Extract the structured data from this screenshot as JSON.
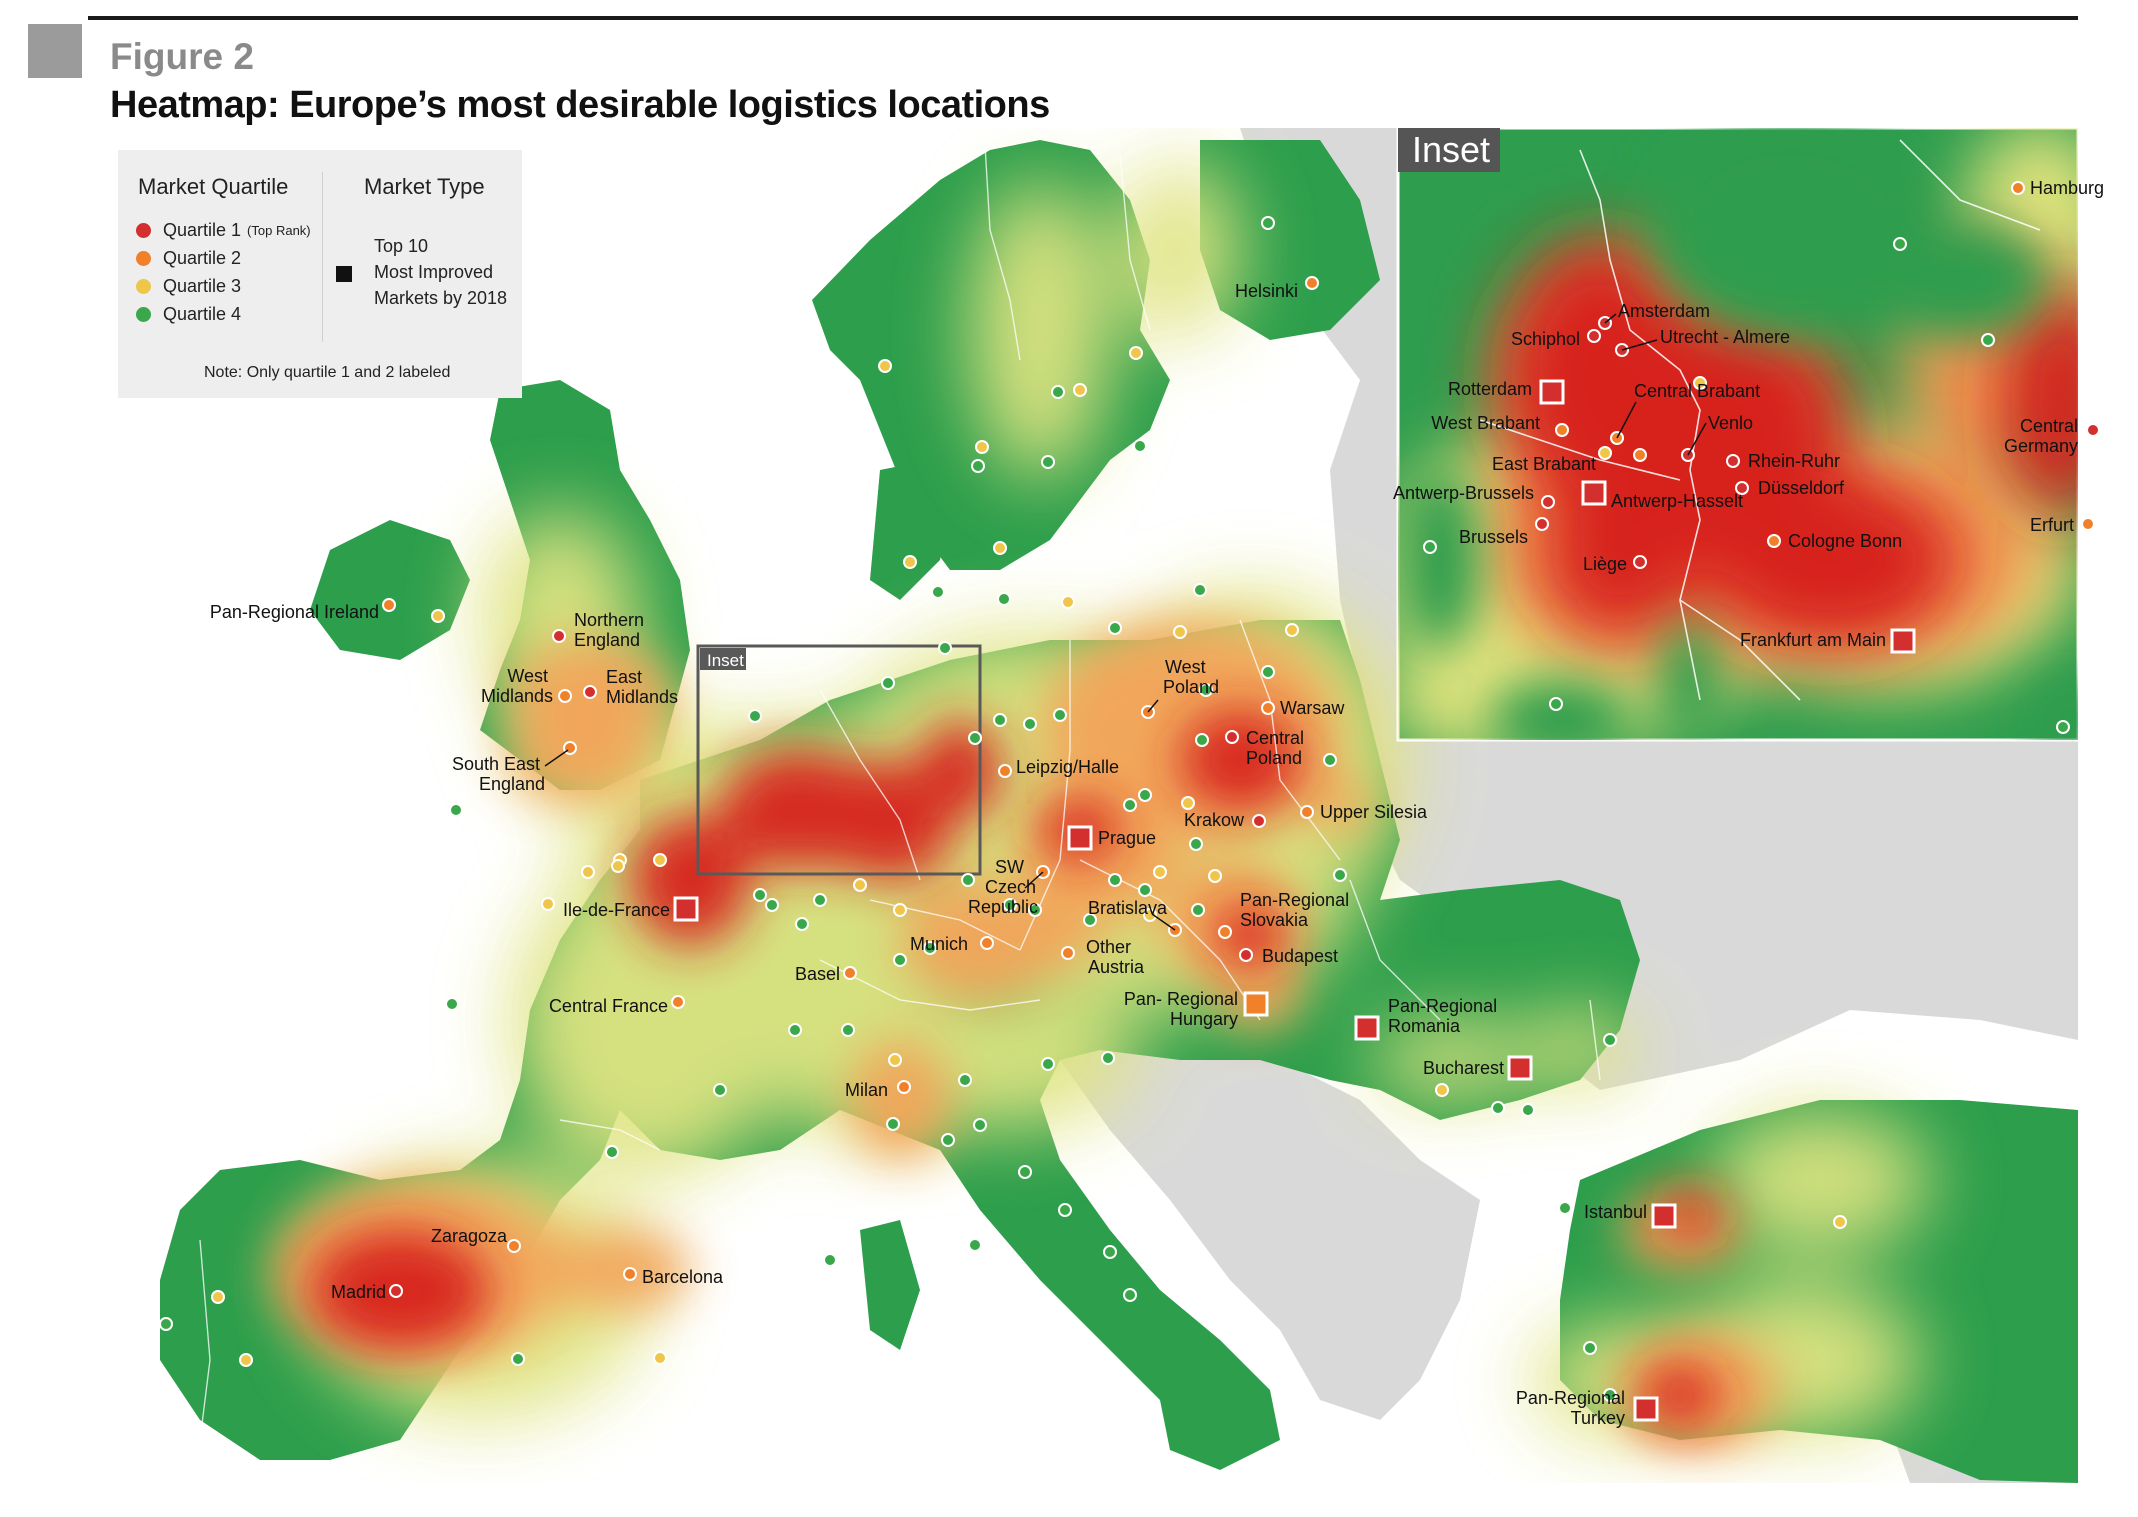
{
  "figure": {
    "label": "Figure 2",
    "title": "Heatmap: Europe’s most desirable logistics locations"
  },
  "legend": {
    "quartile_heading": "Market Quartile",
    "type_heading": "Market Type",
    "quartiles": [
      {
        "label": "Quartile 1",
        "sub": "(Top Rank)",
        "color": "#d32f2f"
      },
      {
        "label": "Quartile 2",
        "sub": "",
        "color": "#f0812a"
      },
      {
        "label": "Quartile 3",
        "sub": "",
        "color": "#efc64a"
      },
      {
        "label": "Quartile 4",
        "sub": "",
        "color": "#3aa74a"
      }
    ],
    "type_lines": [
      "Top 10",
      "Most Improved",
      "Markets by 2018"
    ],
    "note": "Note: Only quartile 1 and 2 labeled"
  },
  "inset": {
    "tag": "Inset",
    "mini_tag": "Inset"
  },
  "colors": {
    "heat_red": "#d7231f",
    "heat_orange": "#f0812a",
    "heat_yellow": "#e4e48c",
    "heat_green": "#1f9a48",
    "non_europe_gray": "#d9d9d9",
    "sea": "#ffffff"
  },
  "markets": [
    {
      "name": "Helsinki",
      "quartile": 2,
      "improved": false
    },
    {
      "name": "Pan-Regional Ireland",
      "quartile": 2,
      "improved": false
    },
    {
      "name": "Northern England",
      "quartile": 1,
      "improved": false
    },
    {
      "name": "West Midlands",
      "quartile": 2,
      "improved": false
    },
    {
      "name": "East Midlands",
      "quartile": 1,
      "improved": false
    },
    {
      "name": "South East England",
      "quartile": 2,
      "improved": false
    },
    {
      "name": "Leipzig/Halle",
      "quartile": 2,
      "improved": false
    },
    {
      "name": "West Poland",
      "quartile": 2,
      "improved": false
    },
    {
      "name": "Warsaw",
      "quartile": 2,
      "improved": false
    },
    {
      "name": "Central Poland",
      "quartile": 1,
      "improved": false
    },
    {
      "name": "Upper Silesia",
      "quartile": 2,
      "improved": false
    },
    {
      "name": "Krakow",
      "quartile": 1,
      "improved": false
    },
    {
      "name": "Prague",
      "quartile": 1,
      "improved": true
    },
    {
      "name": "SW Czech Republic",
      "quartile": 2,
      "improved": false
    },
    {
      "name": "Ile-de-France",
      "quartile": 1,
      "improved": true
    },
    {
      "name": "Bratislava",
      "quartile": 2,
      "improved": false
    },
    {
      "name": "Pan-Regional Slovakia",
      "quartile": 2,
      "improved": false
    },
    {
      "name": "Budapest",
      "quartile": 1,
      "improved": false
    },
    {
      "name": "Munich",
      "quartile": 2,
      "improved": false
    },
    {
      "name": "Other Austria",
      "quartile": 2,
      "improved": false
    },
    {
      "name": "Basel",
      "quartile": 2,
      "improved": false
    },
    {
      "name": "Pan- Regional Hungary",
      "quartile": 2,
      "improved": true
    },
    {
      "name": "Pan-Regional Romania",
      "quartile": 1,
      "improved": true
    },
    {
      "name": "Bucharest",
      "quartile": 1,
      "improved": true
    },
    {
      "name": "Central France",
      "quartile": 2,
      "improved": false
    },
    {
      "name": "Milan",
      "quartile": 2,
      "improved": false
    },
    {
      "name": "Zaragoza",
      "quartile": 2,
      "improved": false
    },
    {
      "name": "Barcelona",
      "quartile": 2,
      "improved": false
    },
    {
      "name": "Madrid",
      "quartile": 1,
      "improved": false
    },
    {
      "name": "Istanbul",
      "quartile": 1,
      "improved": true
    },
    {
      "name": "Pan-Regional Turkey",
      "quartile": 1,
      "improved": true
    },
    {
      "name": "Hamburg",
      "quartile": 2,
      "improved": false
    },
    {
      "name": "Amsterdam",
      "quartile": 1,
      "improved": false
    },
    {
      "name": "Schiphol",
      "quartile": 1,
      "improved": false
    },
    {
      "name": "Utrecht - Almere",
      "quartile": 1,
      "improved": false
    },
    {
      "name": "Rotterdam",
      "quartile": 1,
      "improved": true
    },
    {
      "name": "Central Brabant",
      "quartile": 2,
      "improved": false
    },
    {
      "name": "West Brabant",
      "quartile": 2,
      "improved": false
    },
    {
      "name": "Venlo",
      "quartile": 1,
      "improved": false
    },
    {
      "name": "Central Germany",
      "quartile": 1,
      "improved": false
    },
    {
      "name": "East Brabant",
      "quartile": 2,
      "improved": false
    },
    {
      "name": "Rhein-Ruhr",
      "quartile": 1,
      "improved": false
    },
    {
      "name": "Antwerp-Brussels",
      "quartile": 1,
      "improved": false
    },
    {
      "name": "Antwerp-Hasselt",
      "quartile": 1,
      "improved": true
    },
    {
      "name": "Düsseldorf",
      "quartile": 1,
      "improved": false
    },
    {
      "name": "Erfurt",
      "quartile": 2,
      "improved": false
    },
    {
      "name": "Brussels",
      "quartile": 1,
      "improved": false
    },
    {
      "name": "Cologne Bonn",
      "quartile": 2,
      "improved": false
    },
    {
      "name": "Liège",
      "quartile": 1,
      "improved": false
    },
    {
      "name": "Frankfurt am Main",
      "quartile": 1,
      "improved": true
    }
  ]
}
